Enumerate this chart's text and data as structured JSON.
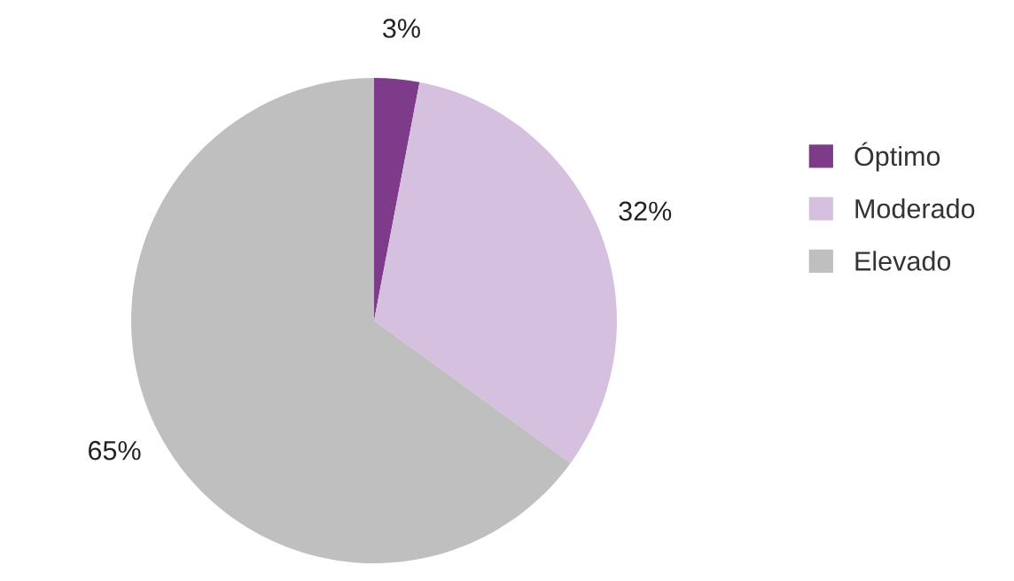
{
  "chart_data": {
    "type": "pie",
    "categories": [
      "Óptimo",
      "Moderado",
      "Elevado"
    ],
    "values": [
      3,
      32,
      65
    ],
    "colors": [
      "#7e3b8a",
      "#d5c0e0",
      "#bfbfbf"
    ],
    "value_labels": [
      "3%",
      "32%",
      "65%"
    ],
    "legend": "right"
  }
}
